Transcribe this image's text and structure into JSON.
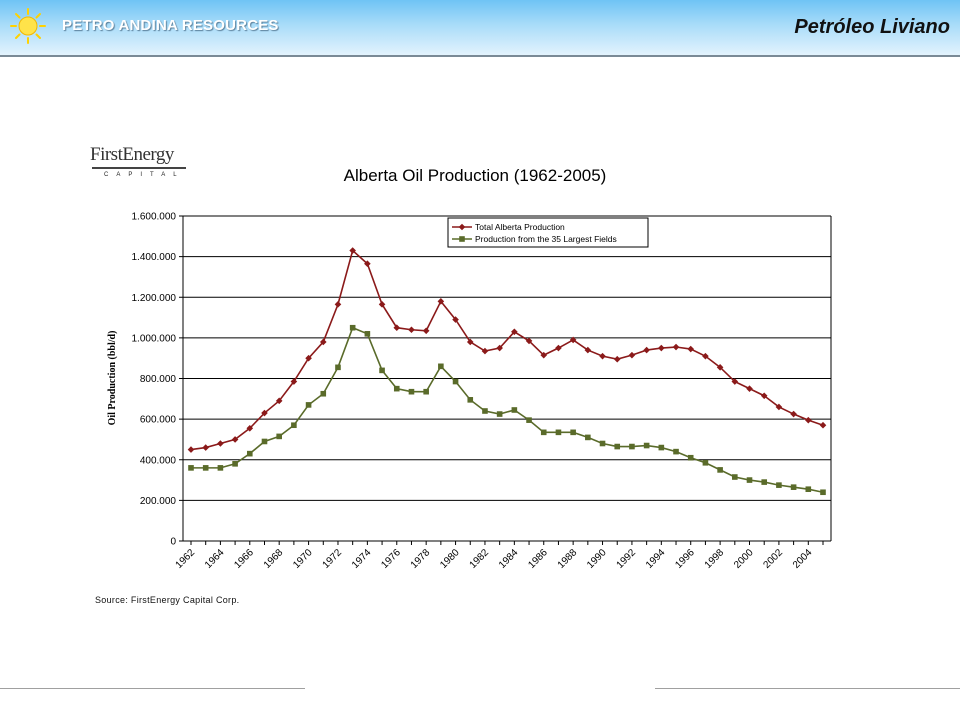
{
  "header": {
    "company": "PETRO ANDINA RESOURCES",
    "title": "Petróleo Liviano"
  },
  "logo": {
    "name": "FirstEnergy",
    "subtitle": "CAPITAL"
  },
  "source": "Source: FirstEnergy Capital Corp.",
  "colors": {
    "total": "#8b1a1a",
    "largest": "#5a6b2a"
  },
  "chart_data": {
    "type": "line",
    "title": "Alberta Oil Production (1962-2005)",
    "xlabel": "",
    "ylabel": "Oil Production (bbl/d)",
    "ylim": [
      0,
      1600000
    ],
    "y_ticks": [
      "0",
      "200.000",
      "400.000",
      "600.000",
      "800.000",
      "1.000.000",
      "1.200.000",
      "1.400.000",
      "1.600.000"
    ],
    "x_tick_labels": [
      "1962",
      "1964",
      "1966",
      "1968",
      "1970",
      "1972",
      "1974",
      "1976",
      "1978",
      "1980",
      "1982",
      "1984",
      "1986",
      "1988",
      "1990",
      "1992",
      "1994",
      "1996",
      "1998",
      "2000",
      "2002",
      "2004"
    ],
    "x": [
      1962,
      1963,
      1964,
      1965,
      1966,
      1967,
      1968,
      1969,
      1970,
      1971,
      1972,
      1973,
      1974,
      1975,
      1976,
      1977,
      1978,
      1979,
      1980,
      1981,
      1982,
      1983,
      1984,
      1985,
      1986,
      1987,
      1988,
      1989,
      1990,
      1991,
      1992,
      1993,
      1994,
      1995,
      1996,
      1997,
      1998,
      1999,
      2000,
      2001,
      2002,
      2003,
      2004,
      2005
    ],
    "grid": true,
    "legend": "top-right",
    "series": [
      {
        "name": "Total Alberta Production",
        "values": [
          450000,
          460000,
          480000,
          500000,
          555000,
          630000,
          690000,
          785000,
          900000,
          980000,
          1165000,
          1430000,
          1365000,
          1165000,
          1050000,
          1040000,
          1035000,
          1180000,
          1090000,
          980000,
          935000,
          950000,
          1030000,
          985000,
          915000,
          950000,
          990000,
          940000,
          910000,
          895000,
          915000,
          940000,
          950000,
          955000,
          945000,
          910000,
          855000,
          785000,
          750000,
          715000,
          660000,
          625000,
          595000,
          570000
        ]
      },
      {
        "name": "Production from the 35 Largest Fields",
        "values": [
          360000,
          360000,
          360000,
          380000,
          430000,
          490000,
          515000,
          570000,
          670000,
          725000,
          855000,
          1050000,
          1020000,
          840000,
          750000,
          735000,
          735000,
          860000,
          785000,
          695000,
          640000,
          625000,
          645000,
          595000,
          535000,
          535000,
          535000,
          510000,
          480000,
          465000,
          465000,
          470000,
          460000,
          440000,
          410000,
          385000,
          350000,
          315000,
          300000,
          290000,
          275000,
          265000,
          255000,
          240000
        ]
      }
    ]
  }
}
